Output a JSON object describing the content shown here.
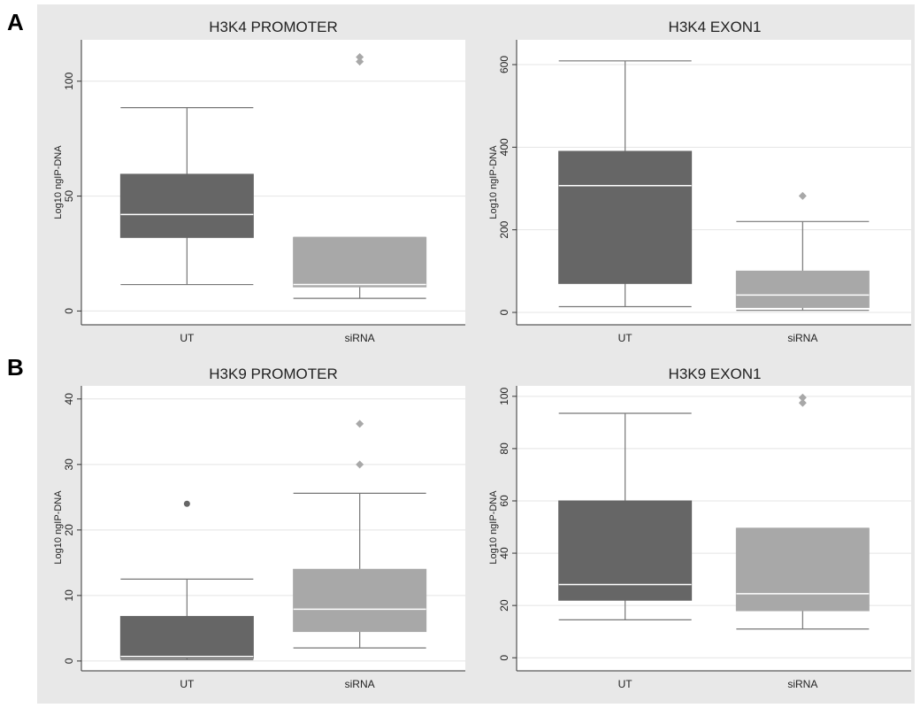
{
  "panel_labels": [
    "A",
    "B"
  ],
  "chart_data": [
    {
      "type": "boxplot",
      "title": "H3K4 PROMOTER",
      "ylabel": "Log10 ngIP-DNA",
      "ylim": [
        -6,
        118
      ],
      "yticks": [
        0,
        50,
        100
      ],
      "grid": true,
      "categories": [
        "UT",
        "siRNA"
      ],
      "boxes": [
        {
          "name": "UT",
          "color": "#666666",
          "whisker_low": 11.5,
          "q1": 32,
          "median": 42,
          "q3": 59.5,
          "whisker_high": 88.5,
          "outliers": []
        },
        {
          "name": "siRNA",
          "color": "#a8a8a8",
          "whisker_low": 5.5,
          "q1": 10.5,
          "median": 11.5,
          "q3": 32,
          "whisker_high": 32,
          "outliers": [
            108.5,
            110.5
          ]
        }
      ]
    },
    {
      "type": "boxplot",
      "title": "H3K4 EXON1",
      "ylabel": "Log10 ngIP-DNA",
      "ylim": [
        -30,
        660
      ],
      "yticks": [
        0,
        200,
        400,
        600
      ],
      "grid": true,
      "categories": [
        "UT",
        "siRNA"
      ],
      "boxes": [
        {
          "name": "UT",
          "color": "#666666",
          "whisker_low": 14,
          "q1": 70,
          "median": 307,
          "q3": 390,
          "whisker_high": 609,
          "outliers": []
        },
        {
          "name": "siRNA",
          "color": "#a8a8a8",
          "whisker_low": 5,
          "q1": 12,
          "median": 42,
          "q3": 100,
          "whisker_high": 220,
          "outliers": [
            282
          ]
        }
      ]
    },
    {
      "type": "boxplot",
      "title": "H3K9 PROMOTER",
      "ylabel": "Log10 ngIP-DNA",
      "ylim": [
        -1.5,
        42
      ],
      "yticks": [
        0,
        10,
        20,
        30,
        40
      ],
      "grid": true,
      "categories": [
        "UT",
        "siRNA"
      ],
      "boxes": [
        {
          "name": "UT",
          "color": "#666666",
          "whisker_low": 0.2,
          "q1": 0.4,
          "median": 0.7,
          "q3": 6.8,
          "whisker_high": 12.5,
          "outliers": [
            24
          ]
        },
        {
          "name": "siRNA",
          "color": "#a8a8a8",
          "whisker_low": 2,
          "q1": 4.5,
          "median": 7.9,
          "q3": 14,
          "whisker_high": 25.6,
          "outliers": [
            30,
            36.2
          ]
        }
      ]
    },
    {
      "type": "boxplot",
      "title": "H3K9 EXON1",
      "ylabel": "Log10 ngIP-DNA",
      "ylim": [
        -5,
        104
      ],
      "yticks": [
        0,
        20,
        40,
        60,
        80,
        100
      ],
      "grid": true,
      "categories": [
        "UT",
        "siRNA"
      ],
      "boxes": [
        {
          "name": "UT",
          "color": "#666666",
          "whisker_low": 14.5,
          "q1": 22,
          "median": 28,
          "q3": 60,
          "whisker_high": 93.5,
          "outliers": []
        },
        {
          "name": "siRNA",
          "color": "#a8a8a8",
          "whisker_low": 11,
          "q1": 18,
          "median": 24.5,
          "q3": 49.5,
          "whisker_high": 49.5,
          "outliers": [
            97.5,
            99.5
          ]
        }
      ]
    }
  ]
}
